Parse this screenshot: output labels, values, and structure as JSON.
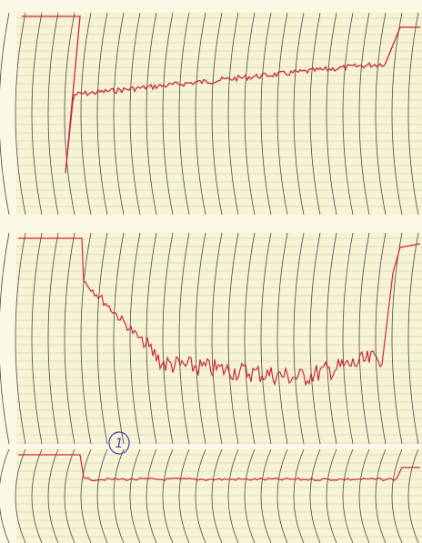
{
  "annotations": [
    {
      "text": "1"
    }
  ]
}
